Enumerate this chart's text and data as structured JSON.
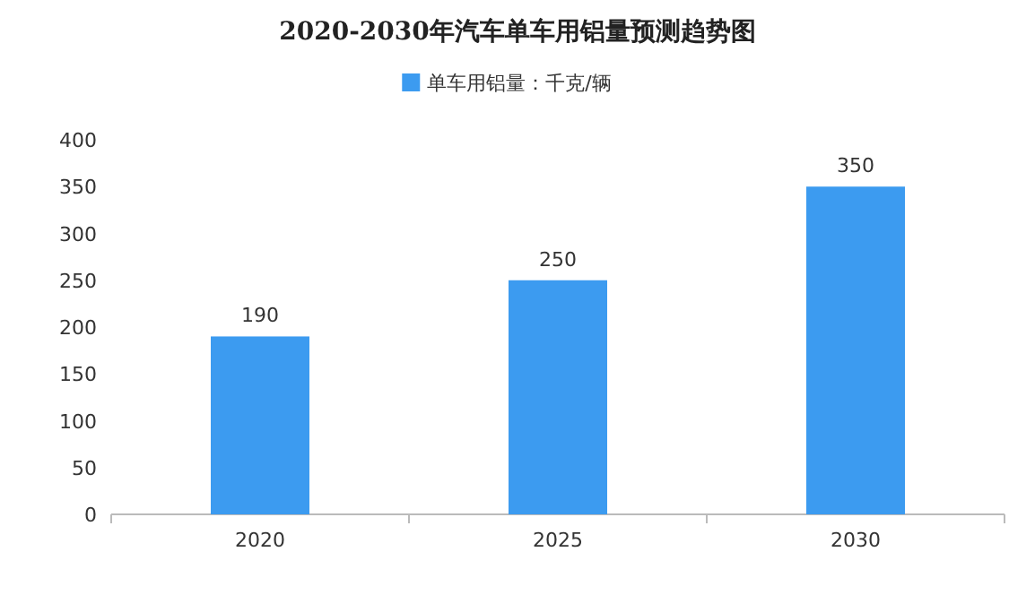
{
  "chart_data": {
    "type": "bar",
    "title": "2020-2030年汽车单车用铝量预测趋势图",
    "categories": [
      "2020",
      "2025",
      "2030"
    ],
    "series": [
      {
        "name": "单车用铝量：千克/辆",
        "color": "#3c9bf0",
        "values": [
          190,
          250,
          350
        ]
      }
    ],
    "ylim": [
      0,
      400
    ],
    "yticks": [
      0,
      50,
      100,
      150,
      200,
      250,
      300,
      350,
      400
    ],
    "data_labels": true,
    "legend": "top"
  }
}
